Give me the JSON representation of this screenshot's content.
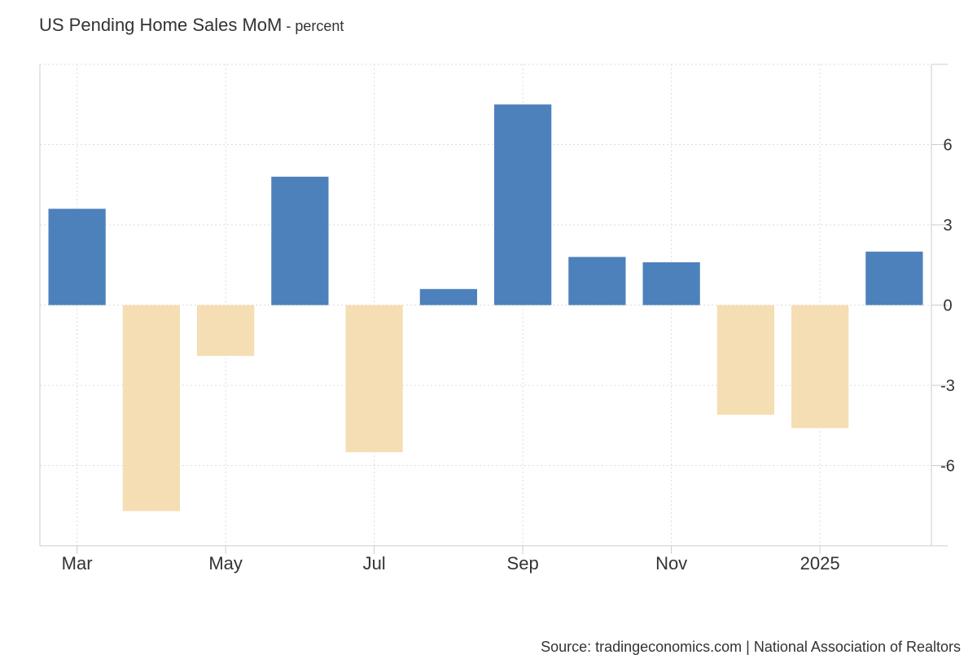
{
  "chart_data": {
    "type": "bar",
    "title": "US Pending Home Sales MoM",
    "subtitle": "percent",
    "subtitle_separator": " - ",
    "categories": [
      "Mar 2024",
      "Apr 2024",
      "May 2024",
      "Jun 2024",
      "Jul 2024",
      "Aug 2024",
      "Sep 2024",
      "Oct 2024",
      "Nov 2024",
      "Dec 2024",
      "Jan 2025",
      "Feb 2025"
    ],
    "values": [
      3.6,
      -7.7,
      -1.9,
      4.8,
      -5.5,
      0.6,
      7.5,
      1.8,
      1.6,
      -4.1,
      -4.6,
      2.0
    ],
    "x_tick_labels": [
      {
        "category": "Mar 2024",
        "label": "Mar"
      },
      {
        "category": "May 2024",
        "label": "May"
      },
      {
        "category": "Jul 2024",
        "label": "Jul"
      },
      {
        "category": "Sep 2024",
        "label": "Sep"
      },
      {
        "category": "Nov 2024",
        "label": "Nov"
      },
      {
        "category": "Jan 2025",
        "label": "2025"
      }
    ],
    "y_ticks": [
      6,
      3,
      0,
      -3,
      -6
    ],
    "ylim": [
      -9,
      9
    ],
    "y_axis_side": "right",
    "grid": true,
    "legend": "none",
    "colors": {
      "positive": "#4d81bc",
      "negative": "#f5deb3",
      "grid": "#dcdcdc",
      "axis": "#cccccc",
      "text": "#333333"
    },
    "source": "Source: tradingeconomics.com | National Association of Realtors"
  }
}
